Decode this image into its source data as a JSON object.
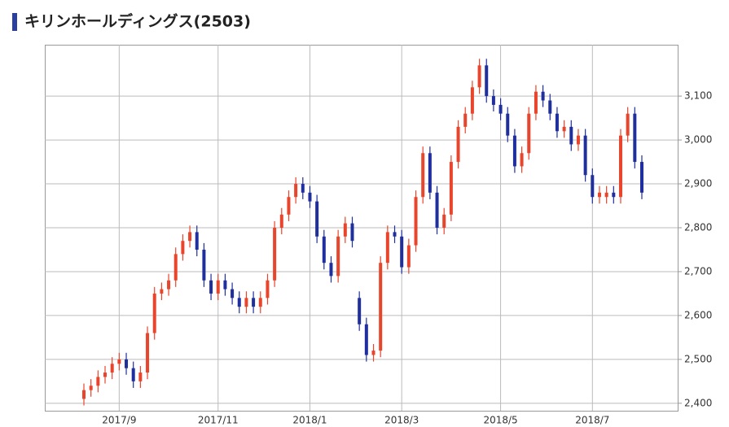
{
  "chart_data": {
    "type": "candlestick",
    "title": "キリンホールディングス(2503)",
    "up_color": "#e8452c",
    "down_color": "#1f2f9e",
    "grid": true,
    "ylim": [
      2383,
      3217
    ],
    "yticks": [
      {
        "value": 2400,
        "label": "2,400"
      },
      {
        "value": 2500,
        "label": "2,500"
      },
      {
        "value": 2600,
        "label": "2,600"
      },
      {
        "value": 2700,
        "label": "2,700"
      },
      {
        "value": 2800,
        "label": "2,800"
      },
      {
        "value": 2900,
        "label": "2,900"
      },
      {
        "value": 3000,
        "label": "3,000"
      },
      {
        "value": 3100,
        "label": "3,100"
      }
    ],
    "categories": [
      null,
      null,
      null,
      null,
      null,
      "2017/9",
      null,
      null,
      null,
      null,
      null,
      null,
      null,
      null,
      null,
      null,
      null,
      null,
      null,
      "2017/11",
      null,
      null,
      null,
      null,
      null,
      null,
      null,
      null,
      null,
      null,
      null,
      null,
      "2018/1",
      null,
      null,
      null,
      null,
      null,
      null,
      null,
      null,
      null,
      null,
      null,
      null,
      "2018/3",
      null,
      null,
      null,
      null,
      null,
      null,
      null,
      null,
      null,
      null,
      null,
      null,
      null,
      "2018/5",
      null,
      null,
      null,
      null,
      null,
      null,
      null,
      null,
      null,
      null,
      null,
      null,
      "2018/7",
      null,
      null,
      null,
      null,
      null,
      null,
      null
    ],
    "open": [
      2410,
      2430,
      2440,
      2460,
      2470,
      2490,
      2500,
      2480,
      2450,
      2470,
      2560,
      2650,
      2660,
      2680,
      2740,
      2770,
      2790,
      2750,
      2680,
      2650,
      2680,
      2660,
      2640,
      2620,
      2640,
      2620,
      2640,
      2680,
      2800,
      2830,
      2870,
      2900,
      2880,
      2860,
      2780,
      2720,
      2690,
      2780,
      2810,
      2640,
      2580,
      2510,
      2520,
      2720,
      2790,
      2780,
      2710,
      2760,
      2870,
      2970,
      2880,
      2800,
      2830,
      2950,
      3030,
      3060,
      3120,
      3170,
      3100,
      3080,
      3060,
      3010,
      2940,
      2970,
      3060,
      3110,
      3090,
      3060,
      3020,
      3030,
      2990,
      3010,
      2920,
      2870,
      2870,
      2880,
      2870,
      3010,
      3060,
      2950
    ],
    "high": [
      2445,
      2455,
      2475,
      2485,
      2505,
      2515,
      2515,
      2495,
      2485,
      2575,
      2665,
      2675,
      2695,
      2755,
      2785,
      2805,
      2805,
      2765,
      2695,
      2695,
      2695,
      2675,
      2655,
      2655,
      2655,
      2655,
      2695,
      2815,
      2845,
      2885,
      2915,
      2915,
      2895,
      2875,
      2795,
      2735,
      2795,
      2825,
      2825,
      2655,
      2595,
      2535,
      2735,
      2805,
      2805,
      2795,
      2775,
      2885,
      2985,
      2985,
      2895,
      2845,
      2965,
      3045,
      3075,
      3135,
      3185,
      3185,
      3115,
      3095,
      3075,
      3025,
      2985,
      3075,
      3125,
      3125,
      3105,
      3075,
      3045,
      3045,
      3025,
      3025,
      2935,
      2895,
      2895,
      2895,
      3025,
      3075,
      3075,
      2965
    ],
    "low": [
      2395,
      2415,
      2425,
      2445,
      2455,
      2475,
      2465,
      2435,
      2435,
      2455,
      2545,
      2635,
      2645,
      2665,
      2725,
      2755,
      2735,
      2665,
      2635,
      2635,
      2645,
      2625,
      2605,
      2605,
      2605,
      2605,
      2625,
      2665,
      2785,
      2815,
      2855,
      2865,
      2845,
      2765,
      2705,
      2675,
      2675,
      2765,
      2755,
      2565,
      2495,
      2495,
      2505,
      2705,
      2765,
      2695,
      2695,
      2745,
      2855,
      2865,
      2785,
      2785,
      2815,
      2935,
      3015,
      3045,
      3105,
      3085,
      3065,
      3045,
      2995,
      2925,
      2925,
      2955,
      3045,
      3075,
      3045,
      3005,
      3005,
      2975,
      2975,
      2905,
      2855,
      2855,
      2855,
      2855,
      2855,
      2995,
      2935,
      2865
    ],
    "close": [
      2430,
      2440,
      2460,
      2470,
      2490,
      2500,
      2480,
      2450,
      2470,
      2560,
      2650,
      2660,
      2680,
      2740,
      2770,
      2790,
      2750,
      2680,
      2650,
      2680,
      2660,
      2640,
      2620,
      2640,
      2620,
      2640,
      2680,
      2800,
      2830,
      2870,
      2900,
      2880,
      2860,
      2780,
      2720,
      2690,
      2780,
      2810,
      2770,
      2580,
      2510,
      2520,
      2720,
      2790,
      2780,
      2710,
      2760,
      2870,
      2970,
      2880,
      2800,
      2830,
      2950,
      3030,
      3060,
      3120,
      3170,
      3100,
      3080,
      3060,
      3010,
      2940,
      2970,
      3060,
      3110,
      3090,
      3060,
      3020,
      3030,
      2990,
      3010,
      2920,
      2870,
      2880,
      2880,
      2870,
      3010,
      3060,
      2950,
      2880
    ]
  }
}
